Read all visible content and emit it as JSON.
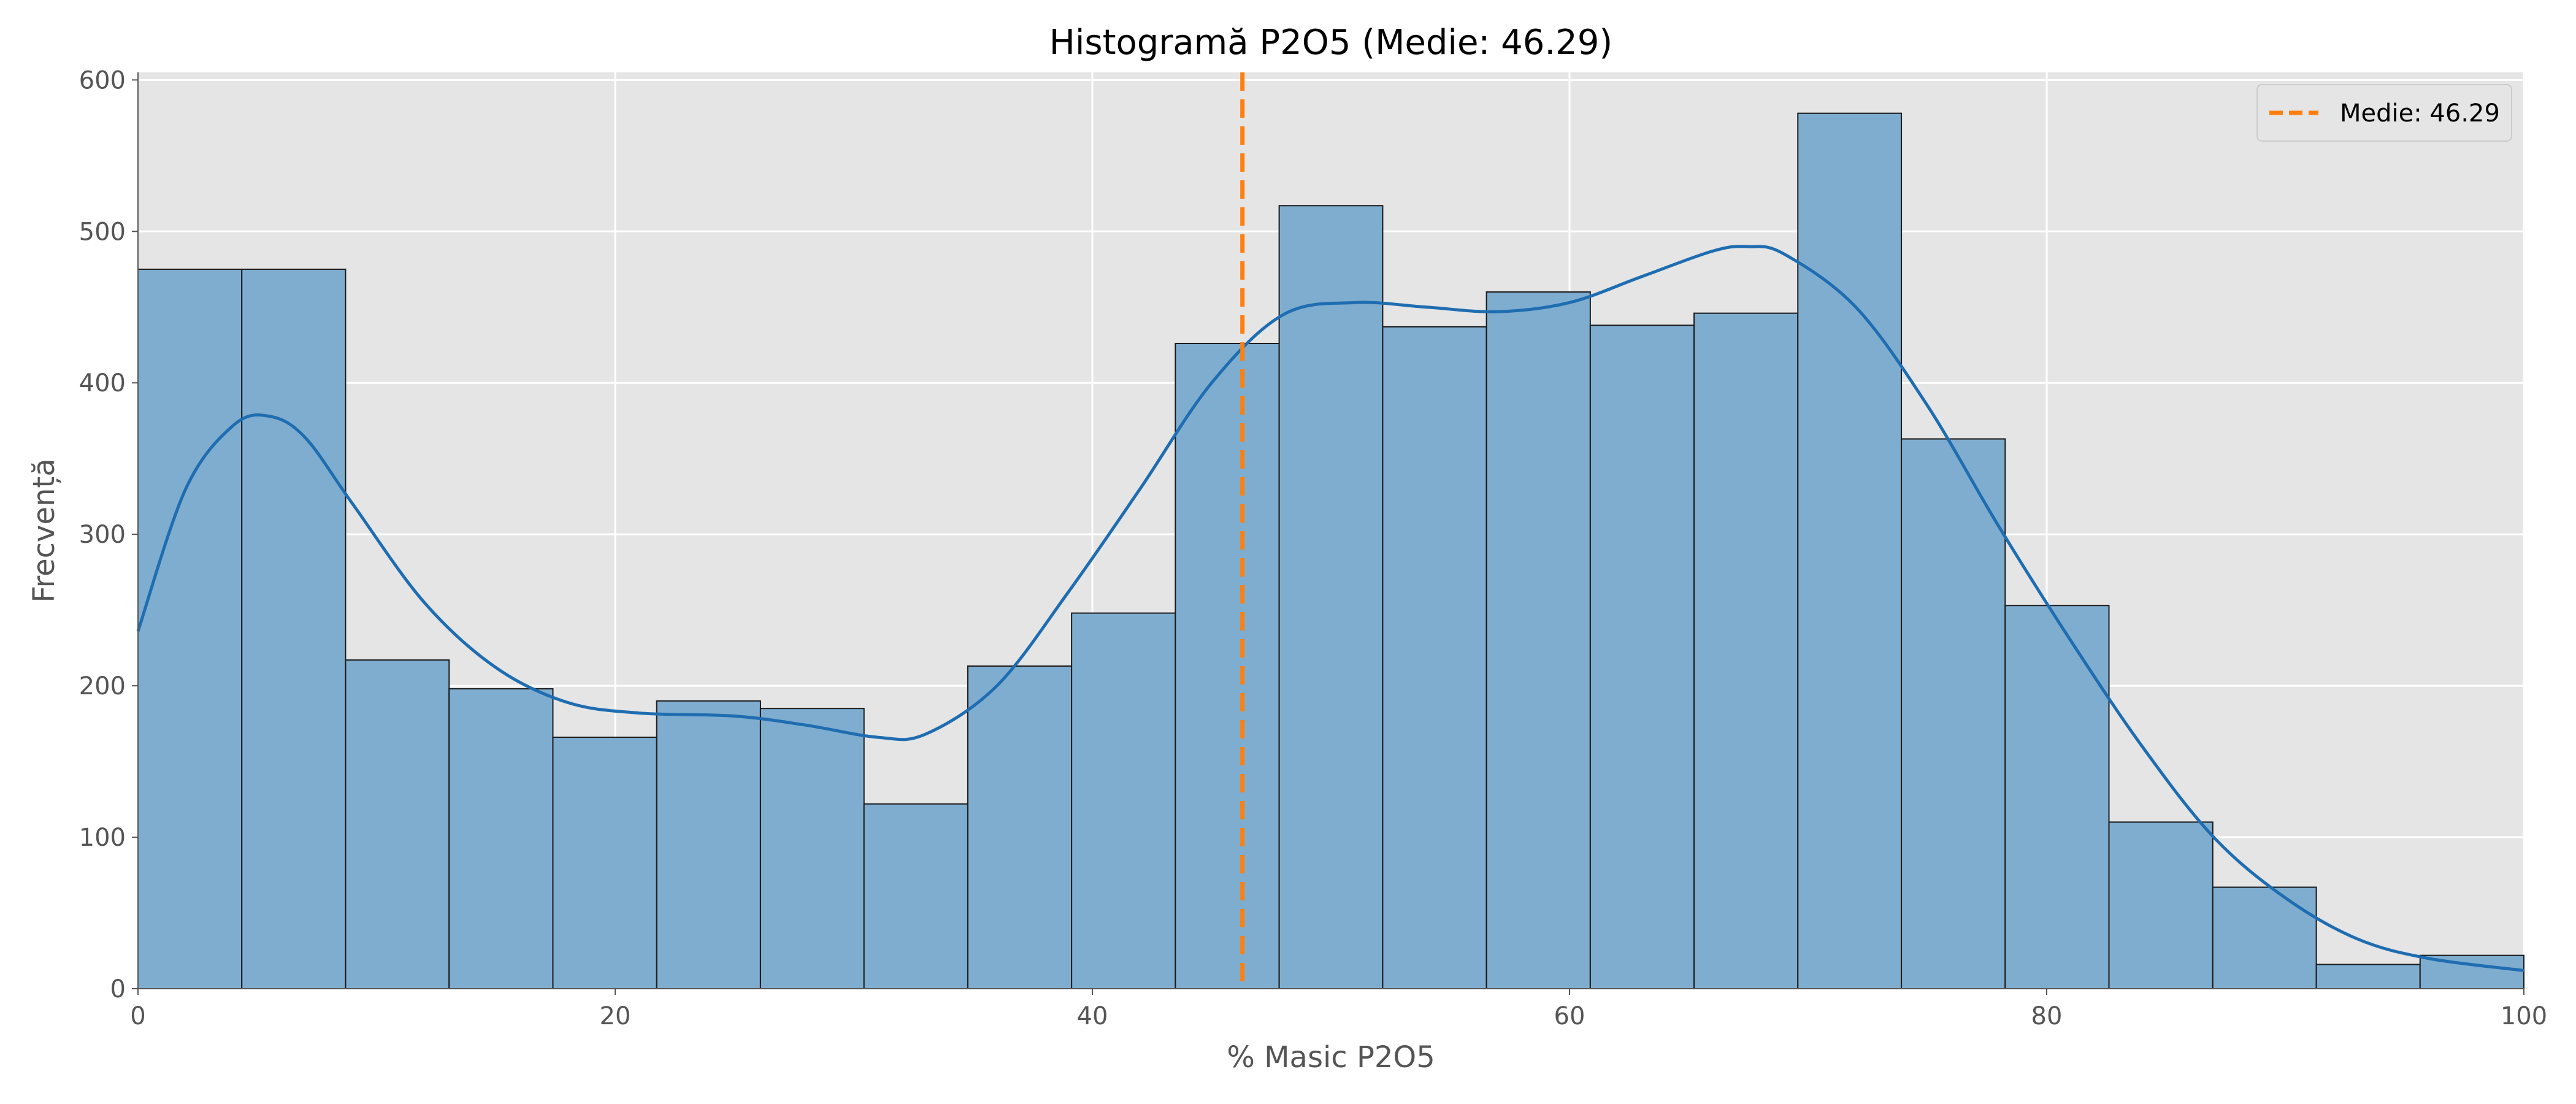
{
  "chart_data": {
    "type": "bar",
    "title": "Histogramă P2O5 (Medie: 46.29)",
    "xlabel": "% Masic P2O5",
    "ylabel": "Frecvență",
    "xlim": [
      0,
      100
    ],
    "ylim": [
      0,
      605
    ],
    "x_ticks": [
      0,
      20,
      40,
      60,
      80,
      100
    ],
    "y_ticks": [
      0,
      100,
      200,
      300,
      400,
      500,
      600
    ],
    "grid": true,
    "legend_position": "top-right",
    "bin_edges": [
      0,
      4.35,
      8.7,
      13.04,
      17.39,
      21.74,
      26.09,
      30.43,
      34.78,
      39.13,
      43.48,
      47.83,
      52.17,
      56.52,
      60.87,
      65.22,
      69.57,
      73.91,
      78.26,
      82.61,
      86.96,
      91.3,
      95.65,
      100
    ],
    "counts": [
      475,
      475,
      217,
      198,
      166,
      190,
      185,
      122,
      213,
      248,
      426,
      517,
      437,
      460,
      438,
      446,
      578,
      363,
      253,
      110,
      67,
      16,
      22
    ],
    "kde": {
      "x": [
        0,
        2,
        4,
        5.5,
        7,
        9,
        12,
        15,
        18,
        21,
        25,
        28,
        31,
        33,
        36,
        39,
        42,
        45,
        48,
        51,
        54,
        57,
        60,
        63,
        66,
        67.5,
        69,
        72,
        75,
        78,
        81,
        84,
        87,
        90,
        93,
        96,
        100
      ],
      "y": [
        236,
        330,
        372,
        378,
        364,
        320,
        255,
        212,
        189,
        182,
        180,
        174,
        166,
        168,
        200,
        262,
        330,
        400,
        445,
        453,
        450,
        447,
        453,
        470,
        487,
        490,
        485,
        450,
        385,
        305,
        230,
        160,
        100,
        60,
        33,
        20,
        12
      ]
    },
    "mean_line": {
      "value": 46.29,
      "label": "Medie: 46.29"
    },
    "colors": {
      "bar_fill": "#7fadcf",
      "bar_edge": "#1a1a1a",
      "kde_line": "#1f6db1",
      "mean_line": "#ff7f0e",
      "plot_background": "#e5e5e5",
      "grid": "#ffffff"
    }
  }
}
